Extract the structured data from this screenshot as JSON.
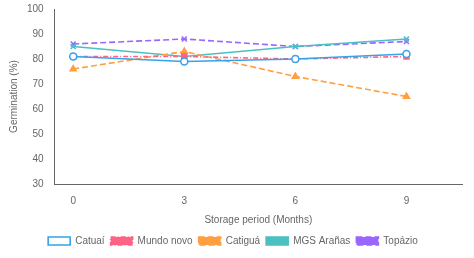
{
  "chart_data": {
    "type": "line",
    "x": [
      0,
      3,
      6,
      9
    ],
    "series": [
      {
        "name": "Catuaí",
        "values": [
          81,
          79,
          80,
          82
        ],
        "marker": "circle-open",
        "line_style": "solid"
      },
      {
        "name": "Mundo novo",
        "values": [
          81,
          81,
          80,
          81
        ],
        "marker": "square",
        "line_style": "dashdot"
      },
      {
        "name": "Catiguá",
        "values": [
          76,
          83,
          73,
          65
        ],
        "marker": "triangle",
        "line_style": "dashed"
      },
      {
        "name": "MGS Arañas",
        "values": [
          85,
          81,
          85,
          88
        ],
        "marker": "x",
        "line_style": "solid"
      },
      {
        "name": "Topázio",
        "values": [
          86,
          88,
          85,
          87
        ],
        "marker": "x",
        "line_style": "dashed"
      }
    ],
    "xlabel": "Storage period (Months)",
    "ylabel": "Germination (%)",
    "xlim": [
      -0.5,
      10.5
    ],
    "ylim": [
      30,
      100
    ],
    "xticks": [
      0,
      3,
      6,
      9
    ],
    "yticks": [
      30,
      40,
      50,
      60,
      70,
      80,
      90,
      100
    ],
    "grid": false,
    "legend": "bottom"
  }
}
